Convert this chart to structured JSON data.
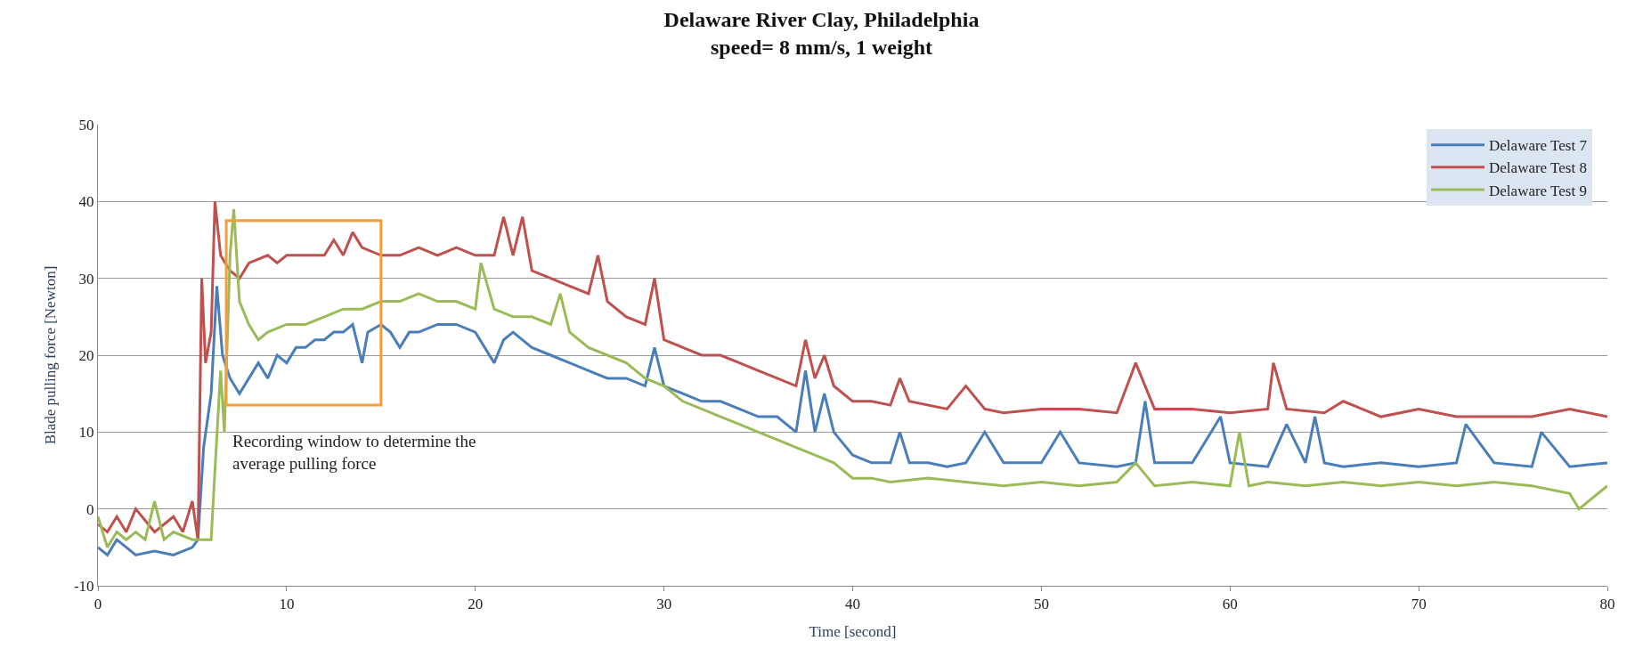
{
  "chart_data": {
    "type": "line",
    "title": "Delaware River Clay, Philadelphia",
    "subtitle": "speed= 8 mm/s, 1 weight",
    "xlabel": "Time [second]",
    "ylabel": "Blade pulling force [Newton]",
    "xlim": [
      0,
      80
    ],
    "xticks": [
      0,
      10,
      20,
      30,
      40,
      50,
      60,
      70,
      80
    ],
    "ylim": [
      -10,
      50
    ],
    "yticks": [
      -10,
      0,
      10,
      20,
      30,
      40,
      50
    ],
    "grid": "y",
    "legend": "top right",
    "marker": "none",
    "line_style": "solid",
    "series": [
      {
        "name": "Delaware Test 7",
        "color": "#4a7ebb",
        "x": [
          0,
          0.5,
          1,
          2,
          3,
          4,
          5,
          5.3,
          5.6,
          6,
          6.3,
          6.6,
          7,
          7.5,
          8,
          8.5,
          9,
          9.5,
          10,
          10.5,
          11,
          11.5,
          12,
          12.5,
          13,
          13.5,
          14,
          14.3,
          15,
          15.5,
          16,
          16.5,
          17,
          18,
          19,
          20,
          21,
          21.5,
          22,
          23,
          24,
          25,
          26,
          27,
          28,
          29,
          29.5,
          30,
          31,
          32,
          33,
          34,
          35,
          36,
          37,
          37.5,
          38,
          38.5,
          39,
          40,
          41,
          42,
          42.5,
          43,
          44,
          45,
          46,
          47,
          48,
          50,
          51,
          52,
          54,
          55,
          55.5,
          56,
          58,
          59.5,
          60,
          62,
          63,
          64,
          64.5,
          65,
          66,
          68,
          70,
          72,
          72.5,
          74,
          76,
          76.5,
          78,
          80
        ],
        "values": [
          -5,
          -6,
          -4,
          -6,
          -5.5,
          -6,
          -5,
          -4,
          8,
          15,
          29,
          20,
          17,
          15,
          17,
          19,
          17,
          20,
          19,
          21,
          21,
          22,
          22,
          23,
          23,
          24,
          19,
          23,
          24,
          23,
          21,
          23,
          23,
          24,
          24,
          23,
          19,
          22,
          23,
          21,
          20,
          19,
          18,
          17,
          17,
          16,
          21,
          16,
          15,
          14,
          14,
          13,
          12,
          12,
          10,
          18,
          10,
          15,
          10,
          7,
          6,
          6,
          10,
          6,
          6,
          5.5,
          6,
          10,
          6,
          6,
          10,
          6,
          5.5,
          6,
          14,
          6,
          6,
          12,
          6,
          5.5,
          11,
          6,
          12,
          6,
          5.5,
          6,
          5.5,
          6,
          11,
          6,
          5.5,
          10,
          5.5,
          6
        ]
      },
      {
        "name": "Delaware Test 8",
        "color": "#c0504d",
        "x": [
          0,
          0.5,
          1,
          1.5,
          2,
          3,
          4,
          4.5,
          5,
          5.3,
          5.5,
          5.7,
          6,
          6.2,
          6.5,
          7,
          7.5,
          8,
          9,
          9.5,
          10,
          11,
          12,
          12.5,
          13,
          13.5,
          14,
          15,
          16,
          17,
          18,
          19,
          20,
          21,
          21.5,
          22,
          22.5,
          23,
          24,
          25,
          26,
          26.5,
          27,
          28,
          29,
          29.5,
          30,
          31,
          32,
          33,
          34,
          35,
          36,
          37,
          37.5,
          38,
          38.5,
          39,
          40,
          41,
          42,
          42.5,
          43,
          45,
          46,
          47,
          48,
          50,
          52,
          54,
          55,
          56,
          58,
          60,
          62,
          62.3,
          63,
          65,
          66,
          68,
          70,
          72,
          74,
          76,
          78,
          80
        ],
        "values": [
          -2,
          -3,
          -1,
          -3,
          0,
          -3,
          -1,
          -3,
          1,
          -4,
          30,
          19,
          23,
          40,
          33,
          31,
          30,
          32,
          33,
          32,
          33,
          33,
          33,
          35,
          33,
          36,
          34,
          33,
          33,
          34,
          33,
          34,
          33,
          33,
          38,
          33,
          38,
          31,
          30,
          29,
          28,
          33,
          27,
          25,
          24,
          30,
          22,
          21,
          20,
          20,
          19,
          18,
          17,
          16,
          22,
          17,
          20,
          16,
          14,
          14,
          13.5,
          17,
          14,
          13,
          16,
          13,
          12.5,
          13,
          13,
          12.5,
          19,
          13,
          13,
          12.5,
          13,
          19,
          13,
          12.5,
          14,
          12,
          13,
          12,
          12,
          12,
          13,
          12
        ]
      },
      {
        "name": "Delaware Test 9",
        "color": "#9bbb59",
        "x": [
          0,
          0.5,
          1,
          1.5,
          2,
          2.5,
          3,
          3.5,
          4,
          5,
          6,
          6.2,
          6.5,
          6.7,
          7,
          7.2,
          7.5,
          8,
          8.5,
          9,
          10,
          11,
          12,
          13,
          14,
          15,
          16,
          17,
          18,
          19,
          20,
          20.3,
          21,
          22,
          23,
          24,
          24.5,
          25,
          26,
          27,
          28,
          29,
          30,
          31,
          32,
          33,
          34,
          35,
          36,
          37,
          38,
          39,
          40,
          41,
          42,
          44,
          46,
          48,
          50,
          52,
          54,
          55,
          56,
          58,
          60,
          60.5,
          61,
          62,
          64,
          66,
          68,
          70,
          72,
          74,
          76,
          78,
          78.5,
          80
        ],
        "values": [
          -1,
          -5,
          -3,
          -4,
          -3,
          -4,
          1,
          -4,
          -3,
          -4,
          -4,
          5,
          18,
          10,
          33,
          39,
          27,
          24,
          22,
          23,
          24,
          24,
          25,
          26,
          26,
          27,
          27,
          28,
          27,
          27,
          26,
          32,
          26,
          25,
          25,
          24,
          28,
          23,
          21,
          20,
          19,
          17,
          16,
          14,
          13,
          12,
          11,
          10,
          9,
          8,
          7,
          6,
          4,
          4,
          3.5,
          4,
          3.5,
          3,
          3.5,
          3,
          3.5,
          6,
          3,
          3.5,
          3,
          10,
          3,
          3.5,
          3,
          3.5,
          3,
          3.5,
          3,
          3.5,
          3,
          2,
          0,
          3
        ]
      }
    ],
    "annotations": [
      "Recording window to determine the\naverage pulling force"
    ]
  }
}
